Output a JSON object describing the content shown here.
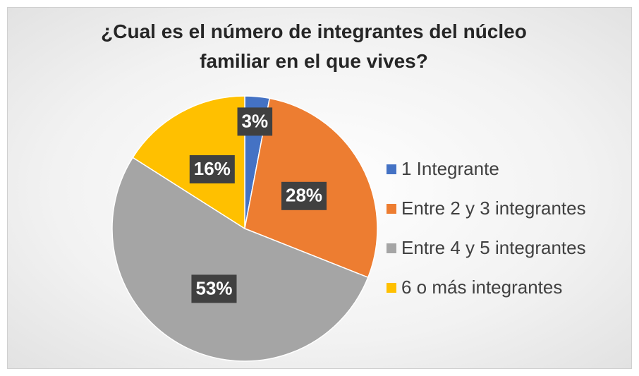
{
  "chart_data": {
    "type": "pie",
    "title": "¿Cual es el número de integrantes del núcleo familiar en el que vives?",
    "categories": [
      "1 Integrante",
      "Entre 2 y 3 integrantes",
      "Entre 4 y 5 integrantes",
      "6 o más integrantes"
    ],
    "values": [
      3,
      28,
      53,
      16
    ],
    "value_labels": [
      "3%",
      "28%",
      "53%",
      "16%"
    ],
    "colors": [
      "#4472c4",
      "#ed7d31",
      "#a5a5a5",
      "#ffc000"
    ],
    "legend": "right"
  }
}
